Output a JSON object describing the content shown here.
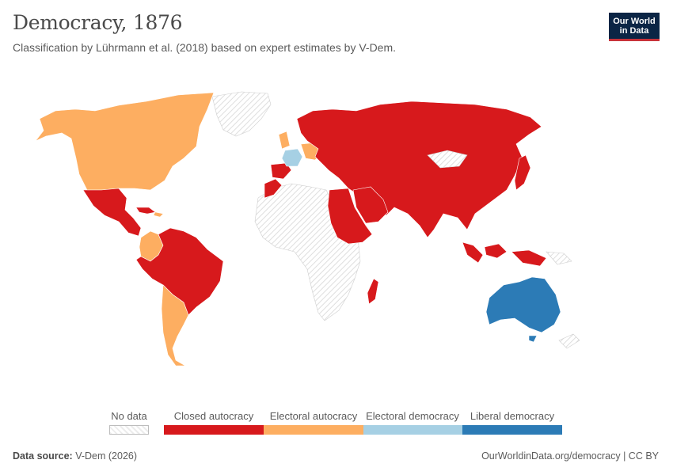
{
  "header": {
    "title": "Democracy, 1876",
    "subtitle": "Classification by Lührmann et al. (2018) based on expert estimates by V-Dem.",
    "logo_line1": "Our World",
    "logo_line2": "in Data"
  },
  "legend": {
    "no_data_label": "No data",
    "categories": [
      {
        "label": "Closed autocracy",
        "color": "#d7191c"
      },
      {
        "label": "Electoral autocracy",
        "color": "#fdae61"
      },
      {
        "label": "Electoral democracy",
        "color": "#a6d0e4"
      },
      {
        "label": "Liberal democracy",
        "color": "#2c7bb6"
      }
    ]
  },
  "map": {
    "regions": [
      {
        "name": "North America (Canada, USA)",
        "category": "Electoral autocracy"
      },
      {
        "name": "Mexico and Central America",
        "category": "Closed autocracy"
      },
      {
        "name": "Colombia",
        "category": "Electoral autocracy"
      },
      {
        "name": "Brazil and northern South America",
        "category": "Closed autocracy"
      },
      {
        "name": "Chile and Argentina",
        "category": "Electoral autocracy"
      },
      {
        "name": "France",
        "category": "Electoral democracy"
      },
      {
        "name": "Russia and Northern Europe",
        "category": "Closed autocracy"
      },
      {
        "name": "Middle East and North-East Africa",
        "category": "Closed autocracy"
      },
      {
        "name": "China and Asia",
        "category": "Closed autocracy"
      },
      {
        "name": "Australia",
        "category": "Liberal democracy"
      },
      {
        "name": "Sub-Saharan Africa",
        "category": "No data"
      }
    ]
  },
  "footer": {
    "source_label": "Data source:",
    "source_value": "V-Dem (2026)",
    "link": "OurWorldinData.org/democracy | CC BY"
  }
}
